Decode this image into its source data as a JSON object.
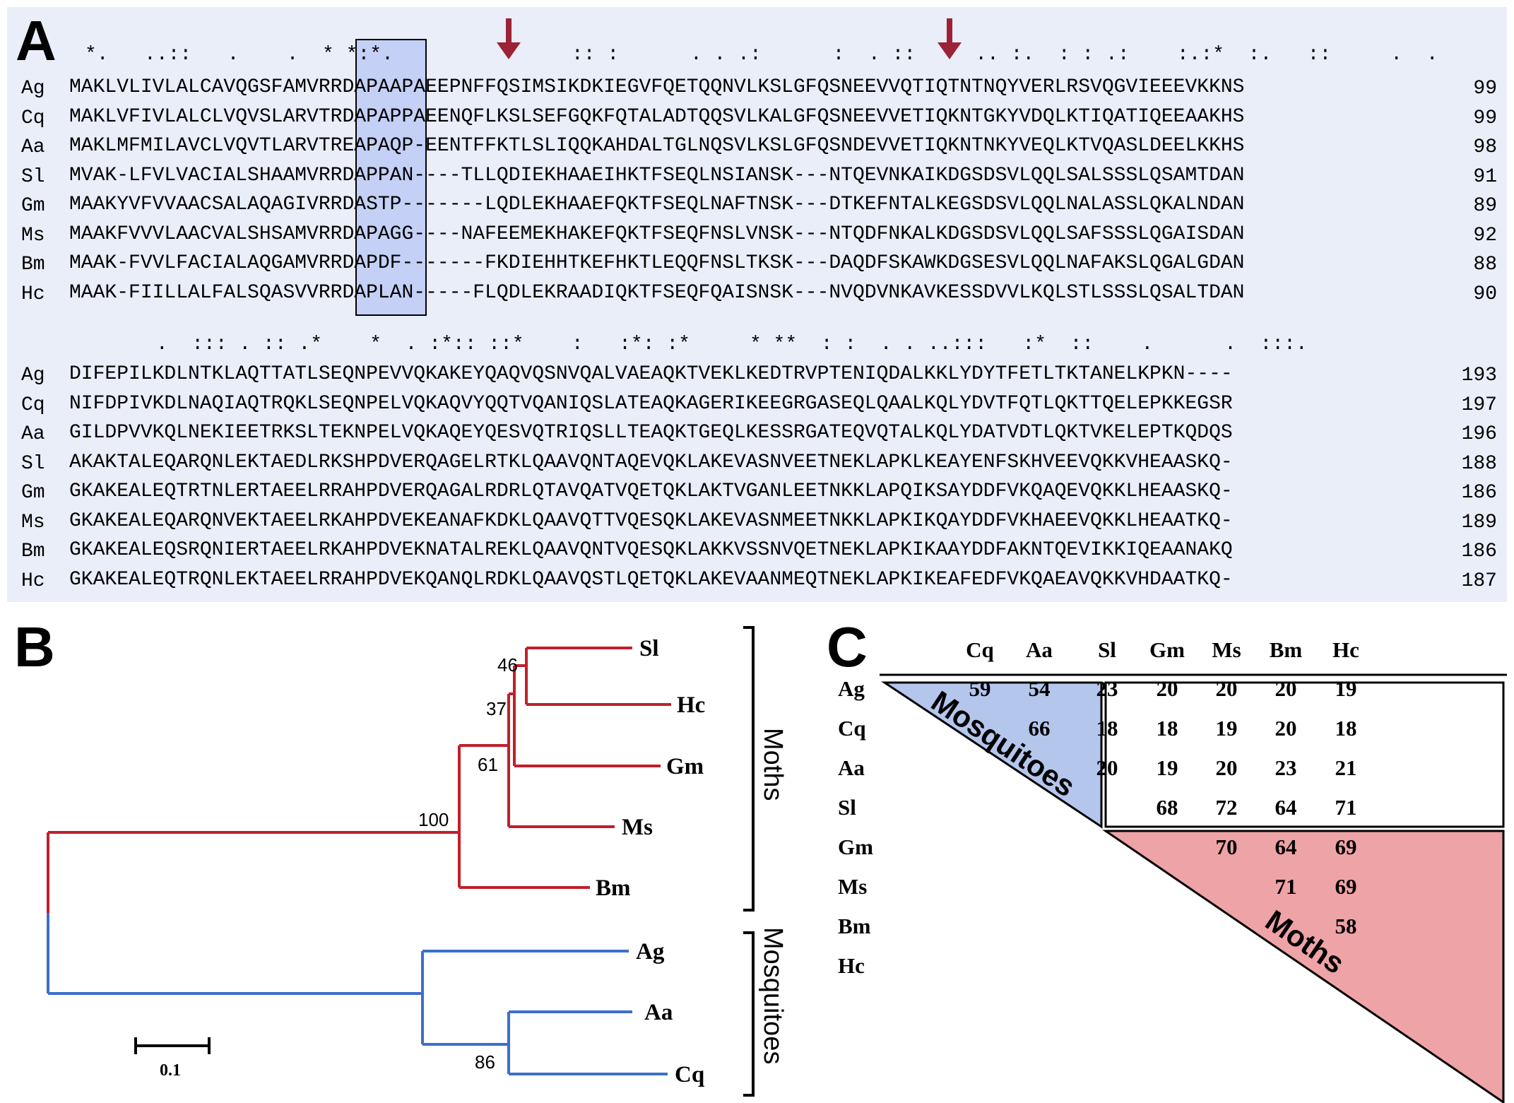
{
  "panel_a": {
    "letter": "A",
    "conservation_top": "*.   ..::   .    .  * *:*.               :: :      . . .:      :  . ::     .. :.  : : .:    :.:*  :.   ::     .  .",
    "conservation_bottom": "      .  ::: . :: .*    *  . :*:: ::*    :   :*: :*     * **  : :  . . ..:::   :*  ::    .      .  :::.",
    "block1": [
      {
        "name": "Ag",
        "seq": "MAKLVLIVLALCAVQGSFAMVRRDAPAAPAEEPNFFQSIMSIKDKIEGVFQETQQNVLKSLGFQSNEEVVQTIQTNTNQYVERLRSVQGVIEEEVKKNS",
        "num": "99"
      },
      {
        "name": "Cq",
        "seq": "MAKLVFIVLALCLVQVSLARVTRDAPAPPAEENQFLKSLSEFGQKFQTALADTQQSVLKALGFQSNEEVVETIQKNTGKYVDQLKTIQATIQEEAAKHS",
        "num": "99"
      },
      {
        "name": "Aa",
        "seq": "MAKLMFMILAVCLVQVTLARVTREAPAQP-EENTFFKTLSLIQQKAHDALTGLNQSVLKSLGFQSNDEVVETIQKNTNKYVEQLKTVQASLDEELKKHS",
        "num": "98"
      },
      {
        "name": "Sl",
        "seq": "MVAK-LFVLVACIALSHAAMVRRDAPPAN----TLLQDIEKHAAEIHKTFSEQLNSIANSK---NTQEVNKAIKDGSDSVLQQLSALSSSLQSAMTDAN",
        "num": "91"
      },
      {
        "name": "Gm",
        "seq": "MAAKYVFVVAACSALAQAGIVRRDASTP-------LQDLEKHAAEFQKTFSEQLNAFTNSK---DTKEFNTALKEGSDSVLQQLNALASSLQKALNDAN",
        "num": "89"
      },
      {
        "name": "Ms",
        "seq": "MAAKFVVVLAACVALSHSAMVRRDAPAGG----NAFEEMEKHAKEFQKTFSEQFNSLVNSK---NTQDFNKALKDGSDSVLQQLSAFSSSLQGAISDAN",
        "num": "92"
      },
      {
        "name": "Bm",
        "seq": "MAAK-FVVLFACIALAQGAMVRRDAPDF-------FKDIEHHTKEFHKTLEQQFNSLTKSK---DAQDFSKAWKDGSESVLQQLNAFAKSLQGALGDAN",
        "num": "88"
      },
      {
        "name": "Hc",
        "seq": "MAAK-FIILLALFALSQASVVRRDAPLAN-----FLQDLEKRAADIQKTFSEQFQAISNSK---NVQDVNKAVKESSDVVLKQLSTLSSSLQSALTDAN",
        "num": "90"
      }
    ],
    "block2": [
      {
        "name": "Ag",
        "seq": "DIFEPILKDLNTKLAQTTATLSEQNPEVVQKAKEYQAQVQSNVQALVAEAQKTVEKLKEDTRVPTENIQDALKKLYDYTFETLTKTANELKPKN----",
        "num": "193"
      },
      {
        "name": "Cq",
        "seq": "NIFDPIVKDLNAQIAQTRQKLSEQNPELVQKAQVYQQTVQANIQSLATEAQKAGERIKEEGRGASEQLQAALKQLYDVTFQTLQKTTQELEPKKEGSR",
        "num": "197"
      },
      {
        "name": "Aa",
        "seq": "GILDPVVKQLNEKIEETRKSLTEKNPELVQKAQEYQESVQTRIQSLLTEAQKTGEQLKESSRGATEQVQTALKQLYDATVDTLQKTVKELEPTKQDQS",
        "num": "196"
      },
      {
        "name": "Sl",
        "seq": "AKAKTALEQARQNLEKTAEDLRKSHPDVERQAGELRTKLQAAVQNTAQEVQKLAKEVASNVEETNEKLAPKLKEAYENFSKHVEEVQKKVHEAASKQ-",
        "num": "188"
      },
      {
        "name": "Gm",
        "seq": "GKAKEALEQTRTNLERTAEELRRAHPDVERQAGALRDRLQTAVQATVQETQKLAKTVGANLEETNKKLAPQIKSAYDDFVKQAQEVQKKLHEAASKQ-",
        "num": "186"
      },
      {
        "name": "Ms",
        "seq": "GKAKEALEQARQNVEKTAEELRKAHPDVEKEANAFKDKLQAAVQTTVQESQKLAKEVASNMEETNKKLAPKIKQAYDDFVKHAEEVQKKLHEAATKQ-",
        "num": "189"
      },
      {
        "name": "Bm",
        "seq": "GKAKEALEQSRQNIERTAEELRKAHPDVEKNATALREKLQAAVQNTVQESQKLAKKVSSNVQETNEKLAPKIKAAYDDFAKNTQEVIKKIQEAANAKQ",
        "num": "186"
      },
      {
        "name": "Hc",
        "seq": "GKAKEALEQTRQNLEKTAEELRRAHPDVEKQANQLRDKLQAAVQSTLQETQKLAKEVAANMEQTNEKLAPKIKEAFEDFVKQAEAVQKKVHDAATKQ-",
        "num": "187"
      }
    ],
    "colors": {
      "background": "#eaeef9",
      "motif_box": "#96aaf0",
      "arrow": "#9b2335"
    }
  },
  "panel_b": {
    "letter": "B",
    "taxa": [
      "Sl",
      "Hc",
      "Gm",
      "Ms",
      "Bm",
      "Ag",
      "Aa",
      "Cq"
    ],
    "bootstrap": [
      "46",
      "37",
      "61",
      "100",
      "86"
    ],
    "group_labels": [
      "Moths",
      "Mosquitoes"
    ],
    "scale_label": "0.1",
    "colors": {
      "moths": "#c0202a",
      "mosquitoes": "#3b6fcc"
    }
  },
  "panel_c": {
    "letter": "C",
    "col_headers": [
      "Cq",
      "Aa",
      "Sl",
      "Gm",
      "Ms",
      "Bm",
      "Hc"
    ],
    "row_headers": [
      "Ag",
      "Cq",
      "Aa",
      "Sl",
      "Gm",
      "Ms",
      "Bm",
      "Hc"
    ],
    "rows": [
      [
        "59",
        "54",
        "23",
        "20",
        "20",
        "20",
        "19"
      ],
      [
        "",
        "66",
        "18",
        "18",
        "19",
        "20",
        "18"
      ],
      [
        "",
        "",
        "20",
        "19",
        "20",
        "23",
        "21"
      ],
      [
        "",
        "",
        "",
        "68",
        "72",
        "64",
        "71"
      ],
      [
        "",
        "",
        "",
        "",
        "70",
        "64",
        "69"
      ],
      [
        "",
        "",
        "",
        "",
        "",
        "71",
        "69"
      ],
      [
        "",
        "",
        "",
        "",
        "",
        "",
        "58"
      ]
    ],
    "triangle_labels": [
      "Mosquitoes",
      "Moths"
    ],
    "colors": {
      "mosquito_triangle": "#b4c6ec",
      "moth_triangle": "#eea3a6"
    }
  }
}
